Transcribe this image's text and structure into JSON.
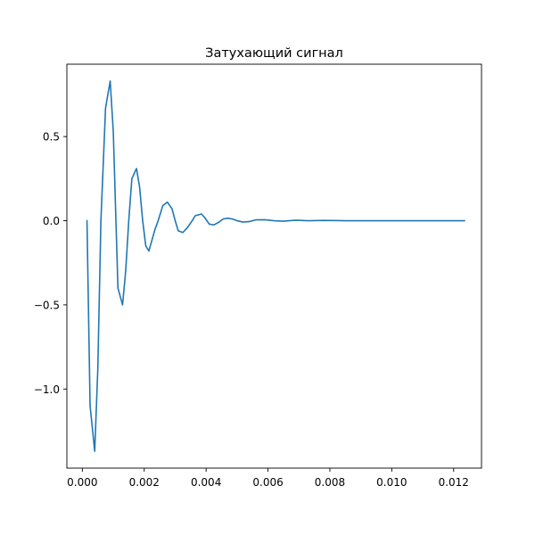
{
  "chart_data": {
    "type": "line",
    "title": "Затухающий сигнал",
    "xlabel": "",
    "ylabel": "",
    "xlim": [
      -0.0005,
      0.0129
    ],
    "ylim": [
      -1.47,
      0.93
    ],
    "grid": false,
    "x_ticks": [
      {
        "value": 0.0,
        "label": "0.000"
      },
      {
        "value": 0.002,
        "label": "0.002"
      },
      {
        "value": 0.004,
        "label": "0.004"
      },
      {
        "value": 0.006,
        "label": "0.006"
      },
      {
        "value": 0.008,
        "label": "0.008"
      },
      {
        "value": 0.01,
        "label": "0.010"
      },
      {
        "value": 0.012,
        "label": "0.012"
      }
    ],
    "y_ticks": [
      {
        "value": 0.5,
        "label": "0.5"
      },
      {
        "value": 0.0,
        "label": "0.0"
      },
      {
        "value": -0.5,
        "label": "−0.5"
      },
      {
        "value": -1.0,
        "label": "−1.0"
      }
    ],
    "colors": {
      "line": "#1f77b4"
    },
    "series": [
      {
        "x": [
          0.00015,
          0.00025,
          0.0004,
          0.0005,
          0.0006,
          0.00075,
          0.0009,
          0.001,
          0.00115,
          0.0013,
          0.0014,
          0.0015,
          0.0016,
          0.00175,
          0.00185,
          0.00195,
          0.00205,
          0.00215,
          0.00235,
          0.00245,
          0.0026,
          0.00275,
          0.0029,
          0.003,
          0.0031,
          0.00325,
          0.0034,
          0.00355,
          0.00365,
          0.00385,
          0.00395,
          0.0041,
          0.00425,
          0.0044,
          0.00455,
          0.0047,
          0.00485,
          0.005,
          0.0052,
          0.0054,
          0.0056,
          0.0059,
          0.0062,
          0.0065,
          0.0069,
          0.0073,
          0.0078,
          0.0085,
          0.0095,
          0.0105,
          0.0115,
          0.01235
        ],
        "y": [
          0.0,
          -1.1,
          -1.37,
          -0.88,
          0.0,
          0.67,
          0.83,
          0.53,
          -0.4,
          -0.5,
          -0.3,
          0.0,
          0.25,
          0.31,
          0.2,
          0.0,
          -0.15,
          -0.18,
          -0.05,
          0.0,
          0.09,
          0.11,
          0.07,
          0.0,
          -0.06,
          -0.07,
          -0.04,
          0.0,
          0.03,
          0.04,
          0.02,
          -0.02,
          -0.025,
          -0.01,
          0.01,
          0.015,
          0.01,
          0.0,
          -0.008,
          -0.005,
          0.005,
          0.006,
          0.0,
          -0.003,
          0.003,
          0.0,
          0.002,
          0.0,
          0.0,
          0.0,
          0.0,
          0.0
        ]
      }
    ]
  }
}
